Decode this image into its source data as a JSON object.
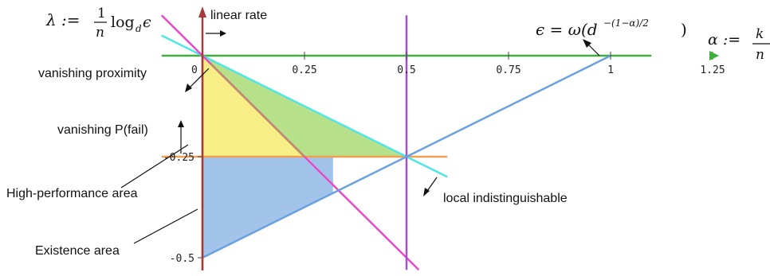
{
  "formulas": {
    "lambda_lhs": "λ :=",
    "lambda_num": "1",
    "lambda_den": "n",
    "lambda_rhs": "log",
    "lambda_sub": "d",
    "lambda_eps": "ϵ",
    "epsilon_lhs": "ϵ = ω(d",
    "epsilon_exp": "−(1−α)/2",
    "epsilon_close": ")",
    "alpha_lhs": "α :=",
    "alpha_num": "k",
    "alpha_den": "n"
  },
  "chart_data": {
    "type": "region-diagram",
    "x_label": "α",
    "y_label": "λ",
    "x_ticks": [
      {
        "value": 0,
        "label": "0"
      },
      {
        "value": 0.25,
        "label": "0.25"
      },
      {
        "value": 0.5,
        "label": "0.5"
      },
      {
        "value": 0.75,
        "label": "0.75"
      },
      {
        "value": 1,
        "label": "1"
      },
      {
        "value": 1.25,
        "label": "1.25"
      }
    ],
    "y_ticks": [
      {
        "value": -0.25,
        "label": "-0.25"
      },
      {
        "value": -0.5,
        "label": "-0.5"
      }
    ],
    "regions": [
      {
        "name": "green-region",
        "color": "#b7e08a",
        "points": [
          [
            0,
            0
          ],
          [
            0.5,
            -0.25
          ],
          [
            0.25,
            -0.25
          ]
        ]
      },
      {
        "name": "yellow-region",
        "color": "#f7ef86",
        "points": [
          [
            0,
            0
          ],
          [
            0.25,
            -0.25
          ],
          [
            0,
            -0.25
          ]
        ]
      },
      {
        "name": "blue-region",
        "color": "#a3c4ea",
        "points": [
          [
            0,
            -0.25
          ],
          [
            0.32,
            -0.25
          ],
          [
            0.32,
            -0.34
          ],
          [
            0,
            -0.5
          ]
        ]
      }
    ],
    "lines": [
      {
        "name": "green-axis-line",
        "color": "#3caf3c",
        "from": [
          -0.1,
          0
        ],
        "to": [
          1.1,
          0
        ]
      },
      {
        "name": "orange-horizontal-line",
        "color": "#f0a050",
        "from": [
          -0.1,
          -0.25
        ],
        "to": [
          0.6,
          -0.25
        ]
      },
      {
        "name": "orange-vertical-line",
        "color": "#f0a050",
        "from": [
          0,
          0
        ],
        "to": [
          0,
          -0.53
        ]
      },
      {
        "name": "cyan-line",
        "color": "#4ee6e6",
        "from": [
          -0.1,
          0.05
        ],
        "to": [
          0.6,
          -0.3
        ]
      },
      {
        "name": "magenta-line",
        "color": "#e84ac8",
        "from": [
          -0.1,
          0.1
        ],
        "to": [
          0.53,
          -0.53
        ]
      },
      {
        "name": "purple-vertical-line",
        "color": "#a44fd0",
        "from": [
          0.5,
          0.1
        ],
        "to": [
          0.5,
          -0.53
        ]
      },
      {
        "name": "blue-line",
        "color": "#6aa0e0",
        "from": [
          0,
          -0.5
        ],
        "to": [
          1,
          0
        ]
      },
      {
        "name": "brown-line",
        "color": "#bf8a6a",
        "from": [
          0.02,
          -0.02
        ],
        "to": [
          0.25,
          -0.25
        ]
      }
    ],
    "annotations": {
      "linear_rate": "linear rate",
      "vanishing_proximity": "vanishing proximity",
      "vanishing_pfail": "vanishing P(fail)",
      "high_performance": "High-performance area",
      "existence_area": "Existence area",
      "local_indistinguishable": "local indistinguishable"
    }
  }
}
